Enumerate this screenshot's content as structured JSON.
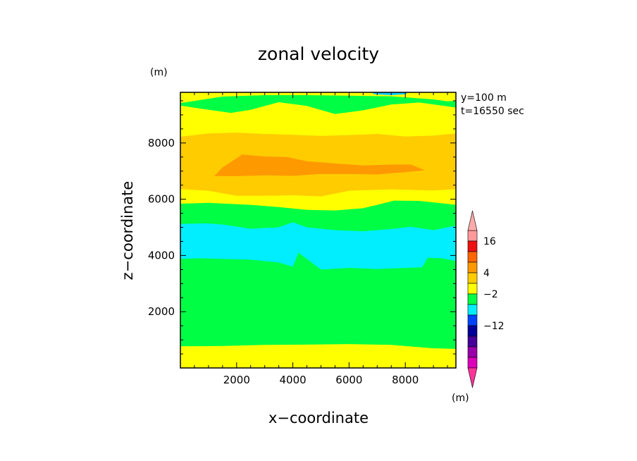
{
  "chart_data": {
    "type": "heatmap",
    "title": "zonal velocity",
    "xlabel": "x−coordinate",
    "ylabel": "z−coordinate",
    "xunit": "(m)",
    "yunit": "(m)",
    "info": [
      "y=100 m",
      "t=16550 sec"
    ],
    "xlim": [
      0,
      9800
    ],
    "ylim": [
      0,
      9800
    ],
    "xticks": [
      2000,
      4000,
      6000,
      8000
    ],
    "yticks": [
      2000,
      4000,
      6000,
      8000
    ],
    "xtick_labels": [
      "2000",
      "4000",
      "6000",
      "8000"
    ],
    "ytick_labels": [
      "2000",
      "4000",
      "6000",
      "8000"
    ],
    "grid": false,
    "colorbar": {
      "placement": "right",
      "extend": "both",
      "labels": [
        {
          "text": "16",
          "slot": 1
        },
        {
          "text": "4",
          "slot": 4
        },
        {
          "text": "−2",
          "slot": 6
        },
        {
          "text": "−12",
          "slot": 9
        }
      ],
      "colors": [
        "#FF9999",
        "#EE1111",
        "#FF6600",
        "#FF9900",
        "#FFCC00",
        "#FFFF00",
        "#00FF44",
        "#00EEFF",
        "#0044FF",
        "#000099",
        "#440099",
        "#9900AA",
        "#DD00BB"
      ],
      "low_color": "#FF3399",
      "high_color": "#FFAAAA"
    },
    "band_colors": {
      "lower_yellow": "#FFFF00",
      "green": "#00FF44",
      "cyan": "#00EEFF",
      "gold": "#FFCC00",
      "orange": "#FF9900",
      "top_cyan": "#00CCFF"
    },
    "contours": {
      "lower_yellow_top": [
        [
          0,
          770
        ],
        [
          1500,
          780
        ],
        [
          3000,
          820
        ],
        [
          4500,
          830
        ],
        [
          6000,
          850
        ],
        [
          7500,
          820
        ],
        [
          9000,
          700
        ],
        [
          9800,
          680
        ]
      ],
      "cyan_bottom": [
        [
          0,
          3880
        ],
        [
          700,
          3900
        ],
        [
          1500,
          3880
        ],
        [
          2500,
          3850
        ],
        [
          3500,
          3750
        ],
        [
          4000,
          3600
        ],
        [
          4200,
          4100
        ],
        [
          4600,
          3800
        ],
        [
          5000,
          3500
        ],
        [
          6000,
          3560
        ],
        [
          7000,
          3520
        ],
        [
          8000,
          3560
        ],
        [
          8600,
          3580
        ],
        [
          8800,
          3920
        ],
        [
          9300,
          3900
        ],
        [
          9800,
          3800
        ]
      ],
      "cyan_top": [
        [
          0,
          5120
        ],
        [
          900,
          5140
        ],
        [
          1500,
          5100
        ],
        [
          2500,
          4950
        ],
        [
          3500,
          5000
        ],
        [
          4000,
          5180
        ],
        [
          4500,
          5000
        ],
        [
          5500,
          4900
        ],
        [
          6500,
          4860
        ],
        [
          7500,
          4940
        ],
        [
          8200,
          5020
        ],
        [
          9000,
          4900
        ],
        [
          9800,
          5060
        ]
      ],
      "lower_yellow_band_top": [
        [
          0,
          5840
        ],
        [
          1000,
          5870
        ],
        [
          2500,
          5800
        ],
        [
          3500,
          5720
        ],
        [
          4500,
          5620
        ],
        [
          5500,
          5600
        ],
        [
          6500,
          5680
        ],
        [
          7000,
          5800
        ],
        [
          7600,
          5950
        ],
        [
          8500,
          5940
        ],
        [
          9800,
          5800
        ]
      ],
      "gold_bottom": [
        [
          0,
          6360
        ],
        [
          1000,
          6300
        ],
        [
          2000,
          6120
        ],
        [
          3000,
          6120
        ],
        [
          4000,
          6140
        ],
        [
          5000,
          6100
        ],
        [
          6000,
          6300
        ],
        [
          7500,
          6350
        ],
        [
          9000,
          6310
        ],
        [
          9800,
          6360
        ]
      ],
      "orange_outline": [
        [
          1200,
          6820
        ],
        [
          1500,
          7130
        ],
        [
          2200,
          7590
        ],
        [
          3000,
          7520
        ],
        [
          3800,
          7500
        ],
        [
          4500,
          7350
        ],
        [
          5500,
          7270
        ],
        [
          6500,
          7200
        ],
        [
          7500,
          7230
        ],
        [
          8200,
          7230
        ],
        [
          8700,
          7030
        ],
        [
          8000,
          6960
        ],
        [
          7000,
          6880
        ],
        [
          6000,
          6900
        ],
        [
          5000,
          6900
        ],
        [
          4000,
          6830
        ],
        [
          3000,
          6850
        ],
        [
          2000,
          6820
        ]
      ],
      "gold_top": [
        [
          0,
          8220
        ],
        [
          1000,
          8340
        ],
        [
          2000,
          8370
        ],
        [
          3000,
          8320
        ],
        [
          4000,
          8290
        ],
        [
          5000,
          8250
        ],
        [
          6000,
          8280
        ],
        [
          7000,
          8320
        ],
        [
          8000,
          8230
        ],
        [
          9000,
          8260
        ],
        [
          9800,
          8340
        ]
      ],
      "green_top_bottom": [
        [
          0,
          9330
        ],
        [
          1000,
          9180
        ],
        [
          1800,
          9070
        ],
        [
          2500,
          9180
        ],
        [
          3500,
          9450
        ],
        [
          4500,
          9320
        ],
        [
          5500,
          9030
        ],
        [
          6500,
          9160
        ],
        [
          7500,
          9370
        ],
        [
          8500,
          9440
        ],
        [
          9800,
          9260
        ]
      ],
      "top_yellow_top": [
        [
          0,
          9420
        ],
        [
          1500,
          9650
        ],
        [
          3000,
          9700
        ],
        [
          4500,
          9700
        ],
        [
          6000,
          9680
        ],
        [
          7500,
          9660
        ],
        [
          9000,
          9550
        ],
        [
          9500,
          9480
        ],
        [
          9800,
          9500
        ]
      ],
      "top_cyan_patch": [
        [
          6800,
          9800
        ],
        [
          6900,
          9730
        ],
        [
          7500,
          9700
        ],
        [
          8000,
          9730
        ],
        [
          8100,
          9800
        ]
      ]
    }
  }
}
